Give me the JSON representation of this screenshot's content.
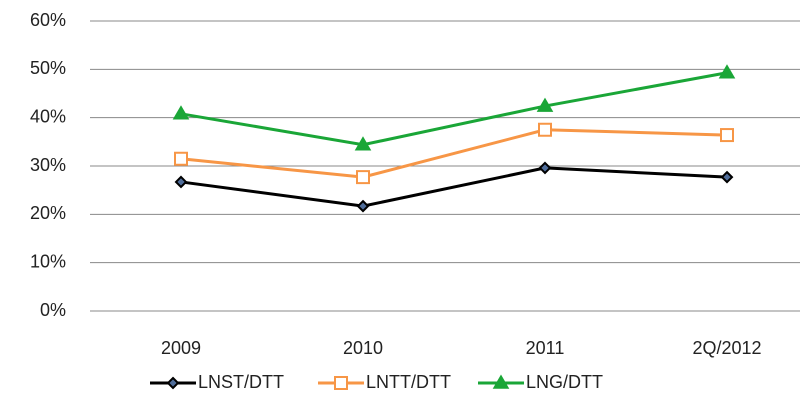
{
  "chart_data": {
    "type": "line",
    "categories": [
      "2009",
      "2010",
      "2011",
      "2Q/2012"
    ],
    "series": [
      {
        "name": "LNST/DTT",
        "color": "#000000",
        "marker": "diamond",
        "values": [
          26.7,
          21.7,
          29.6,
          27.7
        ]
      },
      {
        "name": "LNTT/DTT",
        "color": "#f79646",
        "marker": "square",
        "values": [
          31.5,
          27.7,
          37.5,
          36.4
        ]
      },
      {
        "name": "LNG/DTT",
        "color": "#1aa637",
        "marker": "triangle",
        "values": [
          40.8,
          34.4,
          42.4,
          49.3
        ]
      }
    ],
    "ylim": [
      0,
      60
    ],
    "yticks": [
      {
        "value": 0,
        "label": "0%"
      },
      {
        "value": 10,
        "label": "10%"
      },
      {
        "value": 20,
        "label": "20%"
      },
      {
        "value": 30,
        "label": "30%"
      },
      {
        "value": 40,
        "label": "40%"
      },
      {
        "value": 50,
        "label": "50%"
      },
      {
        "value": 60,
        "label": "60%"
      }
    ],
    "grid": true,
    "legend": "bottom"
  }
}
